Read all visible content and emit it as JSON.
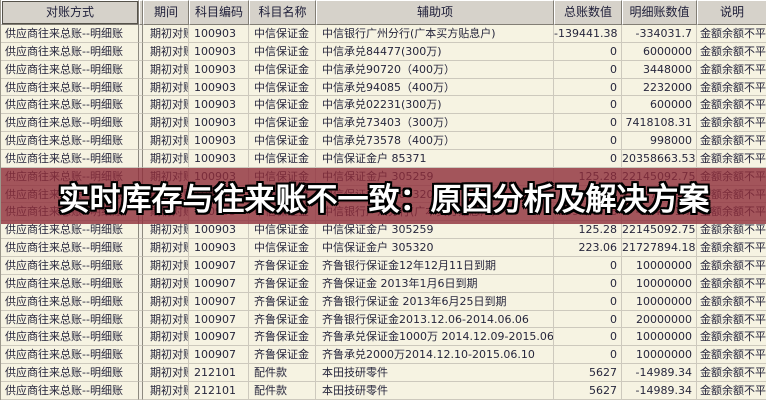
{
  "table": {
    "columns": [
      {
        "key": "method",
        "label": "对账方式"
      },
      {
        "key": "gap",
        "label": ""
      },
      {
        "key": "period",
        "label": "期间"
      },
      {
        "key": "code",
        "label": "科目编码"
      },
      {
        "key": "name",
        "label": "科目名称"
      },
      {
        "key": "aux",
        "label": "辅助项"
      },
      {
        "key": "gl",
        "label": "总账数值"
      },
      {
        "key": "detail",
        "label": "明细账数值"
      },
      {
        "key": "note",
        "label": "说明"
      }
    ],
    "rows": [
      {
        "method": "供应商往来总账--明细账",
        "period": "期初对账",
        "code": "100903",
        "name": "中信保证金",
        "aux": "中信银行广州分行(广本买方贴息户)",
        "gl": "-139441.38",
        "detail": "-334031.7",
        "note": "金额余额不平"
      },
      {
        "method": "供应商往来总账--明细账",
        "period": "期初对账",
        "code": "100903",
        "name": "中信保证金",
        "aux": "中信承兑84477(300万)",
        "gl": "0",
        "detail": "6000000",
        "note": "金额余额不平"
      },
      {
        "method": "供应商往来总账--明细账",
        "period": "期初对账",
        "code": "100903",
        "name": "中信保证金",
        "aux": "中信承兑90720（400万）",
        "gl": "0",
        "detail": "3448000",
        "note": "金额余额不平"
      },
      {
        "method": "供应商往来总账--明细账",
        "period": "期初对账",
        "code": "100903",
        "name": "中信保证金",
        "aux": "中信承兑94085（400万）",
        "gl": "0",
        "detail": "2232000",
        "note": "金额余额不平"
      },
      {
        "method": "供应商往来总账--明细账",
        "period": "期初对账",
        "code": "100903",
        "name": "中信保证金",
        "aux": "中信承兑02231(300万)",
        "gl": "0",
        "detail": "600000",
        "note": "金额余额不平"
      },
      {
        "method": "供应商往来总账--明细账",
        "period": "期初对账",
        "code": "100903",
        "name": "中信保证金",
        "aux": "中信承兑73403（300万）",
        "gl": "0",
        "detail": "7418108.31",
        "note": "金额余额不平"
      },
      {
        "method": "供应商往来总账--明细账",
        "period": "期初对账",
        "code": "100903",
        "name": "中信保证金",
        "aux": "中信承兑73578（400万）",
        "gl": "0",
        "detail": "998000",
        "note": "金额余额不平"
      },
      {
        "method": "供应商往来总账--明细账",
        "period": "期初对账",
        "code": "100903",
        "name": "中信保证金",
        "aux": "中信保证金户  85371",
        "gl": "0",
        "detail": "20358663.53",
        "note": "金额余额不平"
      },
      {
        "method": "供应商往来总账--明细账",
        "period": "期初对账",
        "code": "100903",
        "name": "中信保证金",
        "aux": "中信保证金户  305259",
        "gl": "125.28",
        "detail": "22145092.75",
        "note": "金额余额不平"
      },
      {
        "method": "供应商往来总账--明细账",
        "period": "期初对账",
        "code": "100903",
        "name": "中信保证金",
        "aux": "中信保证金户  305320",
        "gl": "223.06",
        "detail": "21727894.18",
        "note": "金额余额不平"
      },
      {
        "method": "供应商往来总账--明细账",
        "period": "期初对账",
        "code": "100903",
        "name": "中信保证金",
        "aux": "中信银行广州分行(广本买方贴息户)",
        "gl": "-139441.38",
        "detail": "-334031.7",
        "note": "金额余额不平"
      },
      {
        "method": "供应商往来总账--明细账",
        "period": "期初对账",
        "code": "100903",
        "name": "中信保证金",
        "aux": "中信保证金户  305259",
        "gl": "125.28",
        "detail": "22145092.75",
        "note": "金额余额不平"
      },
      {
        "method": "供应商往来总账--明细账",
        "period": "期初对账",
        "code": "100903",
        "name": "中信保证金",
        "aux": "中信保证金户  305320",
        "gl": "223.06",
        "detail": "21727894.18",
        "note": "金额余额不平"
      },
      {
        "method": "供应商往来总账--明细账",
        "period": "期初对账",
        "code": "100907",
        "name": "齐鲁保证金",
        "aux": "齐鲁银行保证金12年12月11日到期",
        "gl": "0",
        "detail": "10000000",
        "note": "金额余额不平"
      },
      {
        "method": "供应商往来总账--明细账",
        "period": "期初对账",
        "code": "100907",
        "name": "齐鲁保证金",
        "aux": "齐鲁保证金 2013年1月6日到期",
        "gl": "0",
        "detail": "10000000",
        "note": "金额余额不平"
      },
      {
        "method": "供应商往来总账--明细账",
        "period": "期初对账",
        "code": "100907",
        "name": "齐鲁保证金",
        "aux": "齐鲁银行保证金 2013年6月25日到期",
        "gl": "0",
        "detail": "10000000",
        "note": "金额余额不平"
      },
      {
        "method": "供应商往来总账--明细账",
        "period": "期初对账",
        "code": "100907",
        "name": "齐鲁保证金",
        "aux": "齐鲁银行保证金2013.12.06-2014.06.06",
        "gl": "0",
        "detail": "20000000",
        "note": "金额余额不平"
      },
      {
        "method": "供应商往来总账--明细账",
        "period": "期初对账",
        "code": "100907",
        "name": "齐鲁保证金",
        "aux": "齐鲁承兑保证金1000万  2014.12.09-2015.06.09",
        "gl": "0",
        "detail": "10000000",
        "note": "金额余额不平"
      },
      {
        "method": "供应商往来总账--明细账",
        "period": "期初对账",
        "code": "100907",
        "name": "齐鲁保证金",
        "aux": "齐鲁承兑2000万2014.12.10-2015.06.10",
        "gl": "0",
        "detail": "10000000",
        "note": "金额余额不平"
      },
      {
        "method": "供应商往来总账--明细账",
        "period": "期初对账",
        "code": "212101",
        "name": "配件款",
        "aux": "本田技研零件",
        "gl": "5627",
        "detail": "-14989.34",
        "note": "金额余额不平"
      },
      {
        "method": "供应商往来总账--明细账",
        "period": "期初对账",
        "code": "212101",
        "name": "配件款",
        "aux": "本田技研零件",
        "gl": "5627",
        "detail": "-14989.34",
        "note": "金额余额不平"
      }
    ]
  },
  "overlay": {
    "text": "实时库存与往来账不一致：原因分析及解决方案",
    "band_color": "#8E2D3A",
    "band_opacity": 0.8,
    "text_color": "#FFFFFF",
    "outline_color": "#000000"
  },
  "colors": {
    "cell_background": "#F6F3E2",
    "header_background": "#D6D2CA",
    "grid_line": "#CDC9BD",
    "text": "#26263C"
  }
}
